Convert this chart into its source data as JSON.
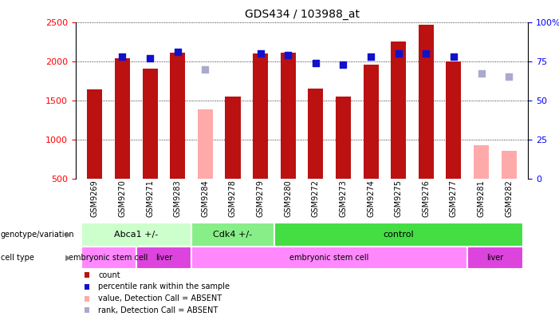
{
  "title": "GDS434 / 103988_at",
  "samples": [
    "GSM9269",
    "GSM9270",
    "GSM9271",
    "GSM9283",
    "GSM9284",
    "GSM9278",
    "GSM9279",
    "GSM9280",
    "GSM9272",
    "GSM9273",
    "GSM9274",
    "GSM9275",
    "GSM9276",
    "GSM9277",
    "GSM9281",
    "GSM9282"
  ],
  "counts": [
    1640,
    2040,
    1910,
    2110,
    null,
    1550,
    2100,
    2110,
    1650,
    1550,
    1960,
    2250,
    2470,
    2000,
    null,
    null
  ],
  "counts_absent": [
    null,
    null,
    null,
    null,
    1380,
    null,
    null,
    null,
    null,
    null,
    null,
    null,
    null,
    null,
    930,
    850
  ],
  "ranks": [
    null,
    78,
    77,
    81,
    null,
    null,
    80,
    79,
    74,
    73,
    78,
    80,
    80,
    78,
    null,
    null
  ],
  "ranks_absent": [
    null,
    null,
    null,
    null,
    70,
    null,
    null,
    null,
    null,
    null,
    null,
    null,
    null,
    null,
    67,
    65
  ],
  "ylim_left": [
    500,
    2500
  ],
  "ylim_right": [
    0,
    100
  ],
  "yticks_left": [
    500,
    1000,
    1500,
    2000,
    2500
  ],
  "yticks_right": [
    0,
    25,
    50,
    75,
    100
  ],
  "yticklabels_right": [
    "0",
    "25",
    "50",
    "75",
    "100%"
  ],
  "bar_color_present": "#bb1111",
  "bar_color_absent": "#ffaaaa",
  "dot_color_present": "#1111cc",
  "dot_color_absent": "#aaaacc",
  "bar_width": 0.55,
  "genotype_groups": [
    {
      "label": "Abca1 +/-",
      "start": 0,
      "end": 4,
      "color": "#ccffcc"
    },
    {
      "label": "Cdk4 +/-",
      "start": 4,
      "end": 7,
      "color": "#88ee88"
    },
    {
      "label": "control",
      "start": 7,
      "end": 16,
      "color": "#44dd44"
    }
  ],
  "celltype_groups": [
    {
      "label": "embryonic stem cell",
      "start": 0,
      "end": 2,
      "color": "#ff88ff"
    },
    {
      "label": "liver",
      "start": 2,
      "end": 4,
      "color": "#dd44dd"
    },
    {
      "label": "embryonic stem cell",
      "start": 4,
      "end": 14,
      "color": "#ff88ff"
    },
    {
      "label": "liver",
      "start": 14,
      "end": 16,
      "color": "#dd44dd"
    }
  ],
  "legend_items": [
    {
      "label": "count",
      "color": "#bb1111"
    },
    {
      "label": "percentile rank within the sample",
      "color": "#1111cc"
    },
    {
      "label": "value, Detection Call = ABSENT",
      "color": "#ffaaaa"
    },
    {
      "label": "rank, Detection Call = ABSENT",
      "color": "#aaaacc"
    }
  ],
  "bg_color": "#cccccc"
}
